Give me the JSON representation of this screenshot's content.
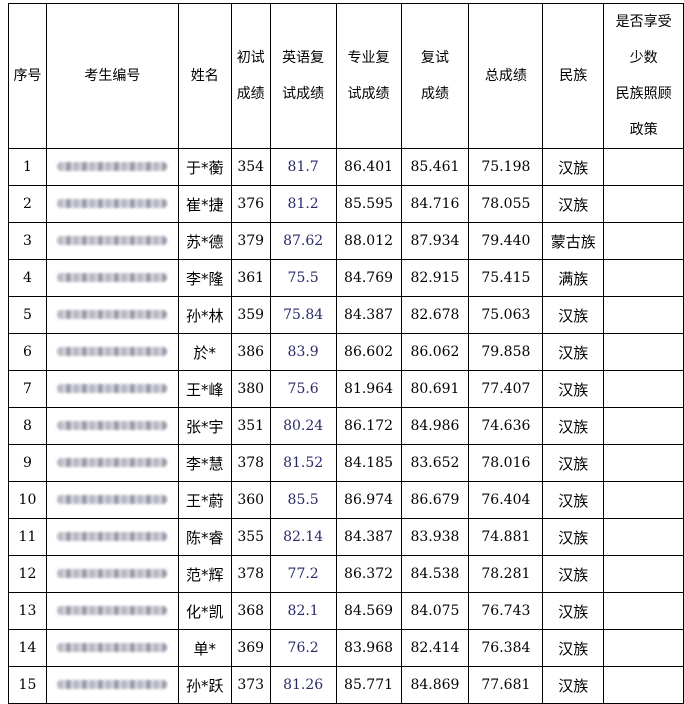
{
  "headers": {
    "index": "序号",
    "candidate_id": "考生编号",
    "name": "姓名",
    "initial_score": "初试成绩",
    "english_retest": "英语复试成绩",
    "major_retest": "专业复试成绩",
    "retest_score": "复试成绩",
    "total_score": "总成绩",
    "ethnicity": "民族",
    "minority_policy": "是否享受少数民族照顾政策"
  },
  "header_lines": {
    "initial_score": [
      "初试",
      "成绩"
    ],
    "english_retest": [
      "英语复",
      "试成绩"
    ],
    "major_retest": [
      "专业复",
      "试成绩"
    ],
    "retest_score": [
      "复试",
      "成绩"
    ],
    "minority_policy": [
      "是否享受",
      "少数",
      "民族照顾",
      "政策"
    ]
  },
  "rows": [
    {
      "index": "1",
      "name": "于*蘅",
      "initial": "354",
      "english": "81.7",
      "major": "86.401",
      "retest": "85.461",
      "total": "75.198",
      "ethnicity": "汉族",
      "policy": ""
    },
    {
      "index": "2",
      "name": "崔*捷",
      "initial": "376",
      "english": "81.2",
      "major": "85.595",
      "retest": "84.716",
      "total": "78.055",
      "ethnicity": "汉族",
      "policy": ""
    },
    {
      "index": "3",
      "name": "苏*德",
      "initial": "379",
      "english": "87.62",
      "major": "88.012",
      "retest": "87.934",
      "total": "79.440",
      "ethnicity": "蒙古族",
      "policy": ""
    },
    {
      "index": "4",
      "name": "李*隆",
      "initial": "361",
      "english": "75.5",
      "major": "84.769",
      "retest": "82.915",
      "total": "75.415",
      "ethnicity": "满族",
      "policy": ""
    },
    {
      "index": "5",
      "name": "孙*林",
      "initial": "359",
      "english": "75.84",
      "major": "84.387",
      "retest": "82.678",
      "total": "75.063",
      "ethnicity": "汉族",
      "policy": ""
    },
    {
      "index": "6",
      "name": "於*",
      "initial": "386",
      "english": "83.9",
      "major": "86.602",
      "retest": "86.062",
      "total": "79.858",
      "ethnicity": "汉族",
      "policy": ""
    },
    {
      "index": "7",
      "name": "王*峰",
      "initial": "380",
      "english": "75.6",
      "major": "81.964",
      "retest": "80.691",
      "total": "77.407",
      "ethnicity": "汉族",
      "policy": ""
    },
    {
      "index": "8",
      "name": "张*宇",
      "initial": "351",
      "english": "80.24",
      "major": "86.172",
      "retest": "84.986",
      "total": "74.636",
      "ethnicity": "汉族",
      "policy": ""
    },
    {
      "index": "9",
      "name": "李*慧",
      "initial": "378",
      "english": "81.52",
      "major": "84.185",
      "retest": "83.652",
      "total": "78.016",
      "ethnicity": "汉族",
      "policy": ""
    },
    {
      "index": "10",
      "name": "王*蔚",
      "initial": "360",
      "english": "85.5",
      "major": "86.974",
      "retest": "86.679",
      "total": "76.404",
      "ethnicity": "汉族",
      "policy": ""
    },
    {
      "index": "11",
      "name": "陈*睿",
      "initial": "355",
      "english": "82.14",
      "major": "84.387",
      "retest": "83.938",
      "total": "74.881",
      "ethnicity": "汉族",
      "policy": ""
    },
    {
      "index": "12",
      "name": "范*辉",
      "initial": "378",
      "english": "77.2",
      "major": "86.372",
      "retest": "84.538",
      "total": "78.281",
      "ethnicity": "汉族",
      "policy": ""
    },
    {
      "index": "13",
      "name": "化*凯",
      "initial": "368",
      "english": "82.1",
      "major": "84.569",
      "retest": "84.075",
      "total": "76.743",
      "ethnicity": "汉族",
      "policy": ""
    },
    {
      "index": "14",
      "name": "单*",
      "initial": "369",
      "english": "76.2",
      "major": "83.968",
      "retest": "82.414",
      "total": "76.384",
      "ethnicity": "汉族",
      "policy": ""
    },
    {
      "index": "15",
      "name": "孙*跃",
      "initial": "373",
      "english": "81.26",
      "major": "85.771",
      "retest": "84.869",
      "total": "77.681",
      "ethnicity": "汉族",
      "policy": ""
    }
  ]
}
